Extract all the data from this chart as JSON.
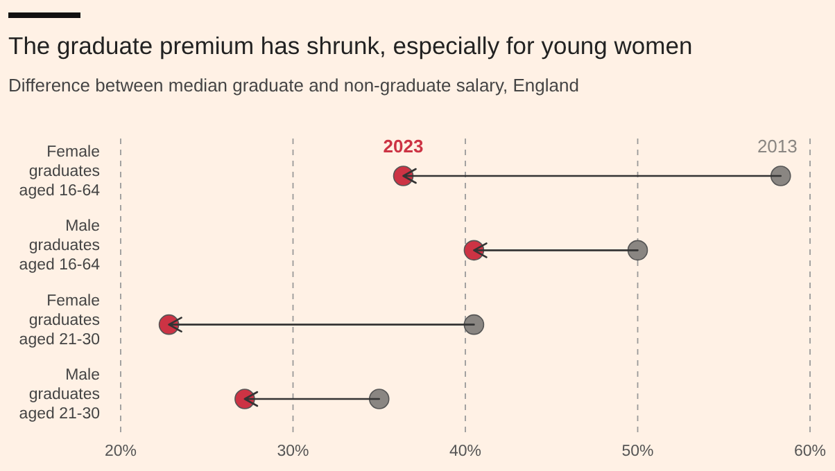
{
  "chart_data": {
    "type": "scatter",
    "orientation": "horizontal",
    "title": "The graduate premium has shrunk, especially for young women",
    "subtitle": "Difference between median graduate and non-graduate salary, England",
    "categories": [
      "Female graduates aged 16-64",
      "Male graduates aged 16-64",
      "Female graduates aged 21-30",
      "Male graduates aged 21-30"
    ],
    "series": [
      {
        "name": "2023",
        "color": "#cc3344",
        "values": [
          36.4,
          40.5,
          22.8,
          27.2
        ]
      },
      {
        "name": "2013",
        "color": "#8a8682",
        "values": [
          58.3,
          50.0,
          40.5,
          35.0
        ]
      }
    ],
    "xlim": [
      20,
      60
    ],
    "xticks": [
      {
        "value": 20,
        "label": "20%"
      },
      {
        "value": 30,
        "label": "30%"
      },
      {
        "value": 40,
        "label": "40%"
      },
      {
        "value": 50,
        "label": "50%"
      },
      {
        "value": 60,
        "label": "60%"
      }
    ],
    "grid": "x",
    "marker": "circle"
  }
}
